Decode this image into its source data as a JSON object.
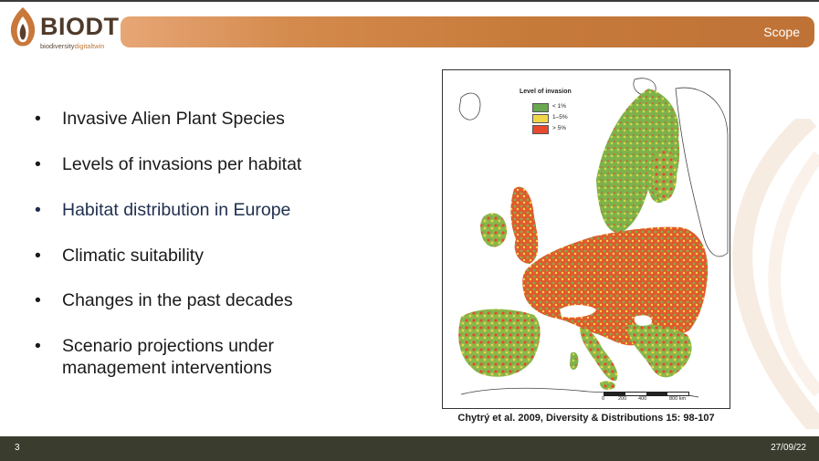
{
  "logo": {
    "word": "BIODT",
    "sub_main": "biodiversity",
    "sub_accent": "digitaltwin"
  },
  "header": {
    "title": "Scope"
  },
  "bullets": [
    {
      "text": "Invasive Alien Plant Species",
      "highlight": false
    },
    {
      "text": "Levels of invasions per habitat",
      "highlight": false
    },
    {
      "text": "Habitat distribution in Europe",
      "highlight": true
    },
    {
      "text": "Climatic suitability",
      "highlight": false
    },
    {
      "text": "Changes in the past decades",
      "highlight": false
    },
    {
      "text": "Scenario projections under\nmanagement interventions",
      "highlight": false
    }
  ],
  "bullet_glyph": "•",
  "map": {
    "legend_title": "Level of invasion",
    "legend": [
      {
        "label": "< 1%",
        "color": "#6aa84f"
      },
      {
        "label": "1–5%",
        "color": "#f1d64a"
      },
      {
        "label": "> 5%",
        "color": "#e8492f"
      }
    ],
    "scale_labels": [
      "0",
      "200",
      "400",
      "800 km"
    ]
  },
  "citation": "Chytrý et al. 2009, Diversity & Distributions 15: 98-107",
  "footer": {
    "page": "3",
    "date": "27/09/22"
  },
  "colors": {
    "accent": "#c67a3a",
    "footer": "#3a3d2e",
    "highlight_text": "#1f2f4e"
  }
}
